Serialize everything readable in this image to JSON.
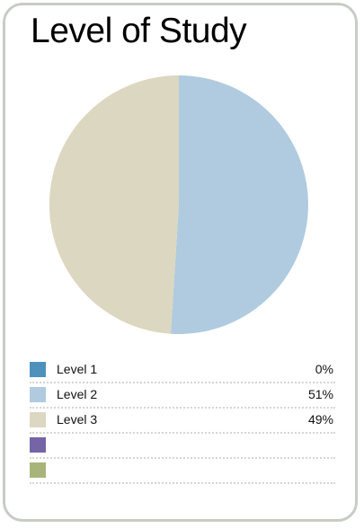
{
  "chart_data": {
    "type": "pie",
    "title": "Level of Study",
    "slices": [
      {
        "label": "Level 1",
        "value": 0,
        "display": "0%",
        "color": "#4d91bc"
      },
      {
        "label": "Level 2",
        "value": 51,
        "display": "51%",
        "color": "#b0cbdf"
      },
      {
        "label": "Level 3",
        "value": 49,
        "display": "49%",
        "color": "#dcd7c0"
      },
      {
        "label": "",
        "value": null,
        "display": "",
        "color": "#7565a6"
      },
      {
        "label": "",
        "value": null,
        "display": "",
        "color": "#a7b57a"
      }
    ],
    "legend_position": "bottom"
  },
  "colors": {
    "card_border": "#c7ccc4"
  }
}
